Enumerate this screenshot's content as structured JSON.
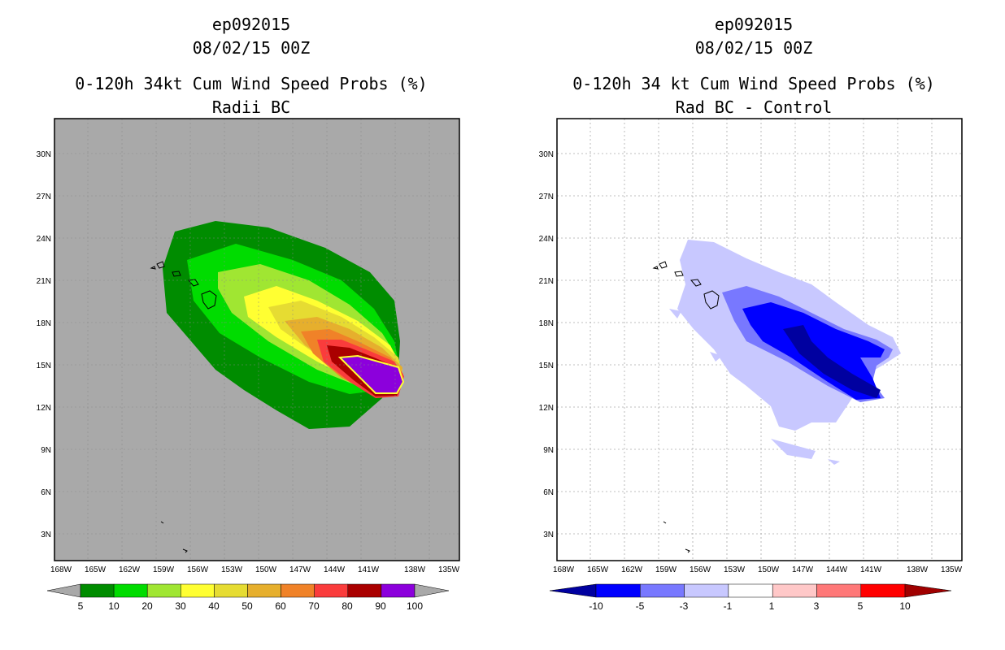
{
  "left": {
    "title1": "ep092015",
    "title2": "08/02/15 00Z",
    "title3": "0-120h 34kt Cum Wind Speed Probs (%)",
    "title4": "Radii BC",
    "colorbar": {
      "colors": [
        "#008c00",
        "#00dc00",
        "#a0e632",
        "#ffff32",
        "#e6dc32",
        "#e6af2d",
        "#f08228",
        "#fa3c3c",
        "#aa0000",
        "#8c00dc"
      ],
      "labels": [
        "5",
        "10",
        "20",
        "30",
        "40",
        "50",
        "60",
        "70",
        "80",
        "90",
        "100"
      ]
    }
  },
  "right": {
    "title1": "ep092015",
    "title2": "08/02/15 00Z",
    "title3": "0-120h 34 kt Cum Wind Speed Probs (%)",
    "title4": "Rad BC - Control",
    "colorbar": {
      "colors": [
        "#0000a0",
        "#0000ff",
        "#7878ff",
        "#c8c8ff",
        "#ffffff",
        "#ffc8c8",
        "#ff7878",
        "#ff0000",
        "#a00000"
      ],
      "labels": [
        "-10",
        "-5",
        "-3",
        "-1",
        "1",
        "3",
        "5",
        "10"
      ]
    }
  },
  "axes": {
    "xticks": [
      "168W",
      "165W",
      "162W",
      "159W",
      "156W",
      "153W",
      "150W",
      "147W",
      "144W",
      "141W",
      "138W",
      "135W"
    ],
    "yticks": [
      "30N",
      "27N",
      "24N",
      "21N",
      "18N",
      "15N",
      "12N",
      "9N",
      "6N",
      "3N"
    ]
  }
}
